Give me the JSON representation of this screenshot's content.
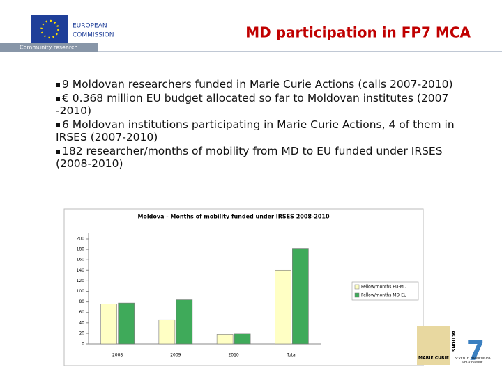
{
  "header": {
    "logo_line1": "EUROPEAN",
    "logo_line2": "COMMISSION",
    "tagline": "Community research",
    "title": "MD participation in FP7 MCA"
  },
  "bullets": [
    "9 Moldovan researchers funded in Marie Curie Actions (calls 2007-2010)",
    "€ 0.368 million EU budget allocated so far to Moldovan institutes (2007 -2010)",
    "6 Moldovan institutions participating in Marie Curie Actions, 4 of them in IRSES (2007-2010)",
    "182 researcher/months of mobility from MD to EU funded under IRSES (2008-2010)"
  ],
  "chart_data": {
    "type": "bar",
    "title": "Moldova - Months of mobility funded under IRSES 2008-2010",
    "categories": [
      "2008",
      "2009",
      "2010",
      "Total"
    ],
    "series": [
      {
        "name": "Fellow/months EU-MD",
        "color": "#ffffc4",
        "values": [
          76,
          46,
          18,
          140
        ]
      },
      {
        "name": "Fellow/months MD-EU",
        "color": "#3faa5a",
        "values": [
          78,
          84,
          20,
          182
        ]
      }
    ],
    "ylim": [
      0,
      200
    ],
    "yticks": [
      0,
      20,
      40,
      60,
      80,
      100,
      120,
      140,
      160,
      180,
      200
    ],
    "legend": "right"
  },
  "footer": {
    "mc_line1": "MARIE CURIE",
    "mc_line2": "ACTIONS",
    "fp_line1": "SEVENTH FRAMEWORK",
    "fp_line2": "PROGRAMME"
  }
}
